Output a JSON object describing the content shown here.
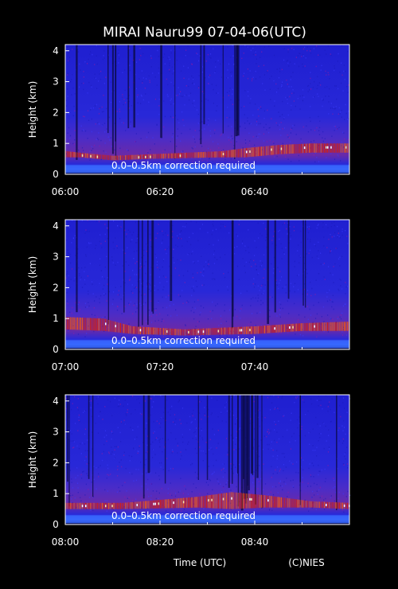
{
  "figure": {
    "title": "MIRAI Nauru99 07-04-06(UTC)",
    "xlabel": "Time (UTC)",
    "credit": "(C)NIES"
  },
  "chart_data": [
    {
      "type": "heatmap",
      "title": "MIRAI Nauru99 07-04-06(UTC)",
      "ylabel": "Height (km)",
      "ylim": [
        0,
        4.2
      ],
      "y_ticks": [
        "0",
        "1",
        "2",
        "3",
        "4"
      ],
      "xlim_minutes": [
        0,
        60
      ],
      "x_ticks": [
        "06:00",
        "06:20",
        "06:40"
      ],
      "annotation": "0.0–0.5km correction required",
      "colormap": [
        "#05052a",
        "#1a1ab8",
        "#3d3dff",
        "#9b1aa0",
        "#e02000",
        "#ff5a00",
        "#ffe6a0",
        "#ffffff"
      ],
      "cloud_layer": [
        {
          "t": 0,
          "base_km": 0.55,
          "top_km": 0.75
        },
        {
          "t": 3,
          "base_km": 0.55,
          "top_km": 0.7
        },
        {
          "t": 10,
          "base_km": 0.45,
          "top_km": 0.6
        },
        {
          "t": 18,
          "base_km": 0.5,
          "top_km": 0.65
        },
        {
          "t": 33,
          "base_km": 0.55,
          "top_km": 0.75
        },
        {
          "t": 38,
          "base_km": 0.55,
          "top_km": 0.85
        },
        {
          "t": 45,
          "base_km": 0.65,
          "top_km": 0.95
        },
        {
          "t": 52,
          "base_km": 0.7,
          "top_km": 1.0
        },
        {
          "t": 60,
          "base_km": 0.7,
          "top_km": 1.0
        }
      ]
    },
    {
      "type": "heatmap",
      "ylabel": "Height (km)",
      "ylim": [
        0,
        4.2
      ],
      "y_ticks": [
        "0",
        "1",
        "2",
        "3",
        "4"
      ],
      "xlim_minutes": [
        0,
        60
      ],
      "x_ticks": [
        "07:00",
        "07:20",
        "07:40"
      ],
      "annotation": "0.0–0.5km correction required",
      "cloud_layer": [
        {
          "t": 0,
          "base_km": 0.65,
          "top_km": 1.05
        },
        {
          "t": 8,
          "base_km": 0.6,
          "top_km": 1.0
        },
        {
          "t": 14,
          "base_km": 0.5,
          "top_km": 0.75
        },
        {
          "t": 25,
          "base_km": 0.45,
          "top_km": 0.65
        },
        {
          "t": 40,
          "base_km": 0.5,
          "top_km": 0.75
        },
        {
          "t": 50,
          "base_km": 0.6,
          "top_km": 0.85
        },
        {
          "t": 60,
          "base_km": 0.6,
          "top_km": 0.9
        }
      ]
    },
    {
      "type": "heatmap",
      "ylabel": "Height (km)",
      "ylim": [
        0,
        4.2
      ],
      "y_ticks": [
        "0",
        "1",
        "2",
        "3",
        "4"
      ],
      "xlim_minutes": [
        0,
        60
      ],
      "x_ticks": [
        "08:00",
        "08:20",
        "08:40"
      ],
      "annotation": "0.0–0.5km correction required",
      "cloud_layer": [
        {
          "t": 0,
          "base_km": 0.5,
          "top_km": 0.7
        },
        {
          "t": 12,
          "base_km": 0.5,
          "top_km": 0.7
        },
        {
          "t": 28,
          "base_km": 0.55,
          "top_km": 0.9
        },
        {
          "t": 35,
          "base_km": 0.5,
          "top_km": 1.05
        },
        {
          "t": 42,
          "base_km": 0.55,
          "top_km": 0.95
        },
        {
          "t": 52,
          "base_km": 0.55,
          "top_km": 0.75
        },
        {
          "t": 60,
          "base_km": 0.5,
          "top_km": 0.7
        }
      ]
    }
  ]
}
